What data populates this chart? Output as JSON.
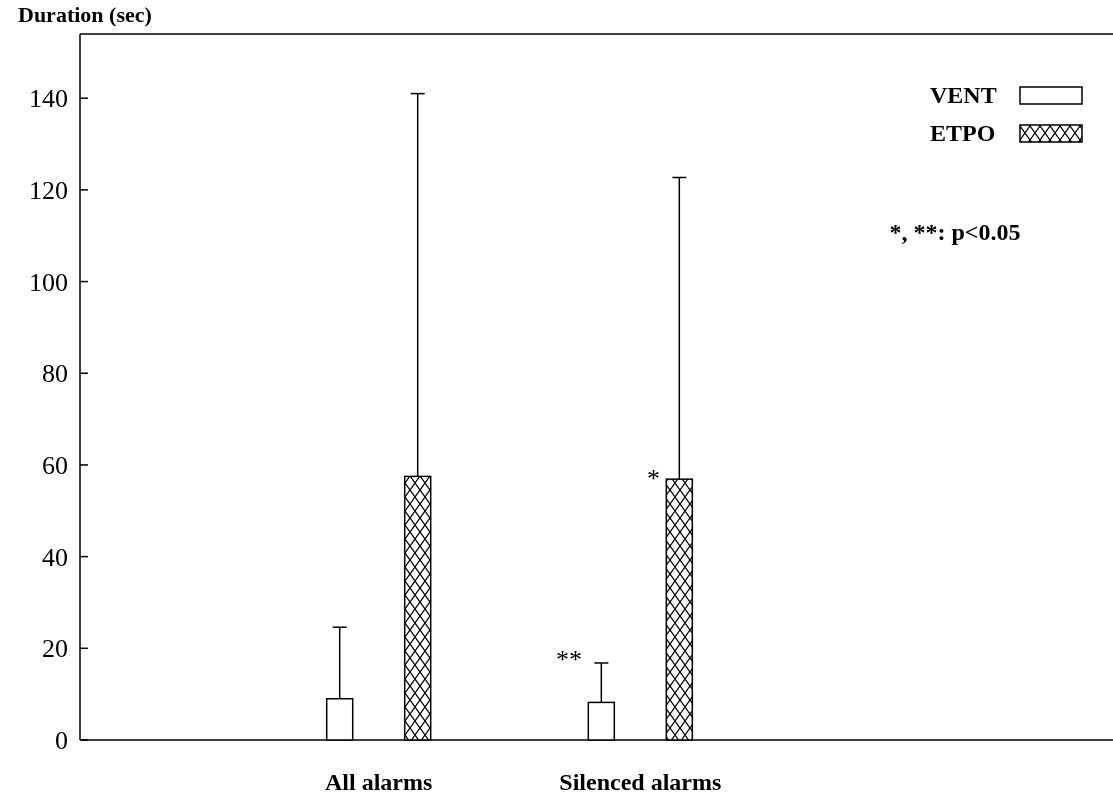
{
  "chart_data": {
    "type": "bar",
    "ylabel": "Duration (sec)",
    "categories": [
      "All alarms",
      "Silenced alarms"
    ],
    "series": [
      {
        "name": "VENT",
        "color": "#ffffff",
        "values": [
          9.0,
          8.2
        ],
        "errors": [
          [
            9.0,
            24.6
          ],
          [
            8.2,
            16.8
          ]
        ]
      },
      {
        "name": "ETPO",
        "color": "#000000",
        "values": [
          57.5,
          56.9
        ],
        "errors": [
          [
            57.5,
            141
          ],
          [
            56.9,
            122.7
          ]
        ]
      }
    ],
    "ylim": [
      0,
      154
    ],
    "yticks": [
      0,
      20,
      40,
      60,
      80,
      100,
      120,
      140
    ],
    "legend": "top right",
    "grid": false,
    "annotations": [
      "**",
      "*",
      "*, **: p<0.05"
    ]
  }
}
